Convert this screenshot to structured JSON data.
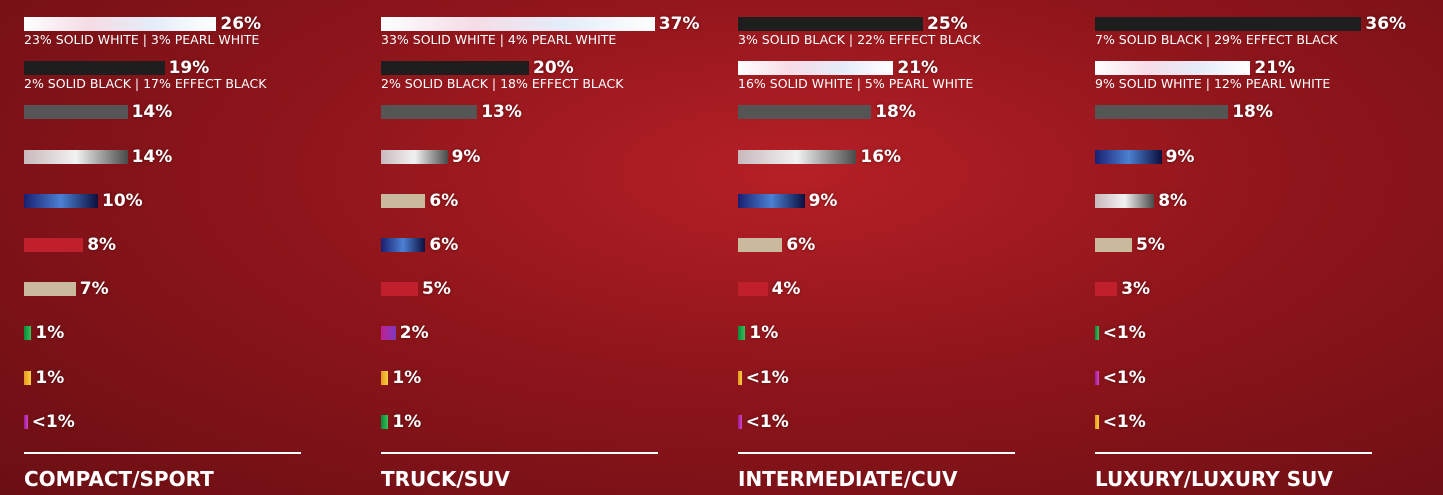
{
  "chart_data": [
    {
      "type": "bar",
      "title": "COMPACT/SPORT",
      "categories": [
        null,
        null,
        null,
        null,
        null,
        null,
        null,
        null,
        null,
        null
      ],
      "values": [
        26,
        19,
        14,
        14,
        10,
        8,
        7,
        1,
        1,
        0.5
      ],
      "value_labels": [
        "26%",
        "19%",
        "14%",
        "14%",
        "10%",
        "8%",
        "7%",
        "1%",
        "1%",
        "<1%"
      ],
      "notes": [
        "23% SOLID WHITE | 3% PEARL WHITE",
        "2% SOLID BLACK | 17% EFFECT BLACK",
        null,
        null,
        null,
        null,
        null,
        null,
        null,
        null
      ],
      "colors": [
        "linear-gradient(90deg,#fff,#f6dce6,#e4ecf8,#fff)",
        "#1e1e1e",
        "#555555",
        "linear-gradient(90deg,#c8b8bc,#f2f2f2,#4a4a4a)",
        "linear-gradient(90deg,#1a1f70,#4b80d2,#0c0f3e)",
        "#c01f2c",
        "#c9b99d",
        "linear-gradient(90deg,#0a8a3a,#35c25a)",
        "linear-gradient(90deg,#e89a20,#f7d040)",
        "linear-gradient(90deg,#9a1c9c,#d445c0)"
      ]
    },
    {
      "type": "bar",
      "title": "TRUCK/SUV",
      "categories": [
        null,
        null,
        null,
        null,
        null,
        null,
        null,
        null,
        null,
        null
      ],
      "values": [
        37,
        20,
        13,
        9,
        6,
        6,
        5,
        2,
        1,
        1
      ],
      "value_labels": [
        "37%",
        "20%",
        "13%",
        "9%",
        "6%",
        "6%",
        "5%",
        "2%",
        "1%",
        "1%"
      ],
      "notes": [
        "33% SOLID WHITE | 4% PEARL WHITE",
        "2% SOLID BLACK | 18% EFFECT BLACK",
        null,
        null,
        null,
        null,
        null,
        null,
        null,
        null
      ],
      "colors": [
        "linear-gradient(90deg,#fff,#f6dce6,#e4ecf8,#fff)",
        "#1e1e1e",
        "#555555",
        "linear-gradient(90deg,#c8b8bc,#f2f2f2,#4a4a4a)",
        "#c9b99d",
        "linear-gradient(90deg,#1a1f70,#4b80d2,#0c0f3e)",
        "#c01f2c",
        "linear-gradient(90deg,#c01f90,#7a3cc0)",
        "linear-gradient(90deg,#e89a20,#f7d040)",
        "linear-gradient(90deg,#0a8a3a,#35c25a)"
      ]
    },
    {
      "type": "bar",
      "title": "INTERMEDIATE/CUV",
      "categories": [
        null,
        null,
        null,
        null,
        null,
        null,
        null,
        null,
        null,
        null
      ],
      "values": [
        25,
        21,
        18,
        16,
        9,
        6,
        4,
        1,
        0.5,
        0.5
      ],
      "value_labels": [
        "25%",
        "21%",
        "18%",
        "16%",
        "9%",
        "6%",
        "4%",
        "1%",
        "<1%",
        "<1%"
      ],
      "notes": [
        "3% SOLID BLACK | 22% EFFECT BLACK",
        "16% SOLID WHITE | 5% PEARL WHITE",
        null,
        null,
        null,
        null,
        null,
        null,
        null,
        null
      ],
      "colors": [
        "#1e1e1e",
        "linear-gradient(90deg,#fff,#f6dce6,#e4ecf8,#fff)",
        "#555555",
        "linear-gradient(90deg,#c8b8bc,#f2f2f2,#4a4a4a)",
        "linear-gradient(90deg,#1a1f70,#4b80d2,#0c0f3e)",
        "#c9b99d",
        "#c01f2c",
        "linear-gradient(90deg,#0a8a3a,#35c25a)",
        "linear-gradient(90deg,#e89a20,#f7d040)",
        "linear-gradient(90deg,#9a1c9c,#d445c0)"
      ]
    },
    {
      "type": "bar",
      "title": "LUXURY/LUXURY SUV",
      "categories": [
        null,
        null,
        null,
        null,
        null,
        null,
        null,
        null,
        null,
        null
      ],
      "values": [
        36,
        21,
        18,
        9,
        8,
        5,
        3,
        0.5,
        0.5,
        0.5
      ],
      "value_labels": [
        "36%",
        "21%",
        "18%",
        "9%",
        "8%",
        "5%",
        "3%",
        "<1%",
        "<1%",
        "<1%"
      ],
      "notes": [
        "7% SOLID BLACK | 29% EFFECT BLACK",
        "9% SOLID WHITE | 12% PEARL WHITE",
        null,
        null,
        null,
        null,
        null,
        null,
        null,
        null
      ],
      "colors": [
        "#1e1e1e",
        "linear-gradient(90deg,#fff,#f6dce6,#e4ecf8,#fff)",
        "#555555",
        "linear-gradient(90deg,#1a1f70,#4b80d2,#0c0f3e)",
        "linear-gradient(90deg,#c8b8bc,#f2f2f2,#4a4a4a)",
        "#c9b99d",
        "#c01f2c",
        "linear-gradient(90deg,#0a8a3a,#35c25a)",
        "linear-gradient(90deg,#9a1c9c,#d445c0)",
        "linear-gradient(90deg,#e89a20,#f7d040)"
      ]
    }
  ]
}
